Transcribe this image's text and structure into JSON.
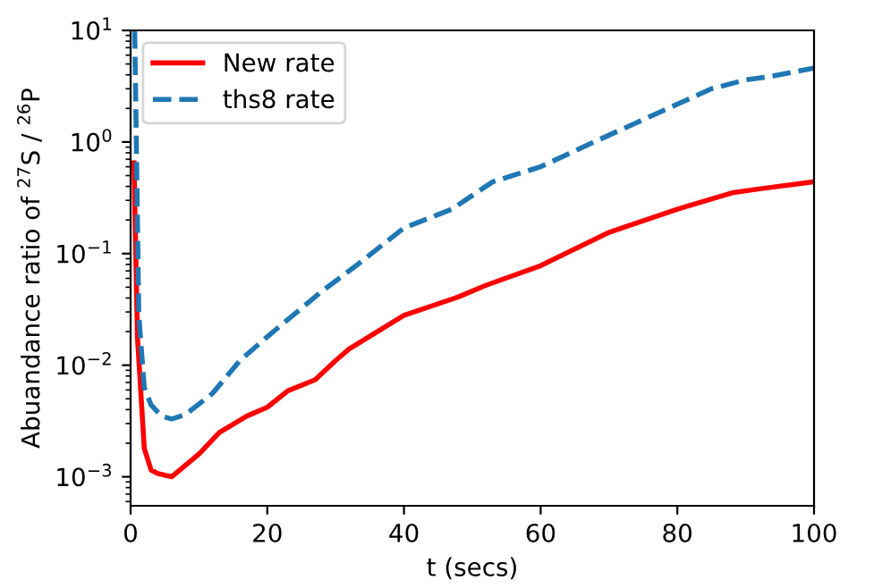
{
  "chart_data": {
    "type": "line",
    "xlabel": "t (secs)",
    "ylabel": "Abuandance ratio of $^{27}$S / $^{26}$P",
    "log": "y",
    "xlim": [
      0,
      100
    ],
    "xticks": [
      0,
      20,
      40,
      60,
      80,
      100
    ],
    "ylim": [
      0.00055,
      10
    ],
    "yticks": [
      {
        "value": 0.001,
        "label": "10$^{−3}$"
      },
      {
        "value": 0.01,
        "label": "10$^{−2}$"
      },
      {
        "value": 0.1,
        "label": "10$^{−1}$"
      },
      {
        "value": 1,
        "label": "10$^{0}$"
      },
      {
        "value": 10,
        "label": "10$^{1}$"
      }
    ],
    "legend": "top left",
    "grid": false,
    "series": [
      {
        "name": "New rate",
        "color": "#ff0000",
        "line_style": "solid",
        "x": [
          0.5,
          1,
          2,
          3,
          4,
          6,
          10,
          13,
          17,
          20,
          23,
          27,
          30,
          32,
          40,
          48,
          52,
          60,
          70,
          80,
          88,
          92,
          100
        ],
        "values": [
          0.65,
          0.018,
          0.0018,
          0.00115,
          0.00107,
          0.001,
          0.0016,
          0.0025,
          0.0035,
          0.0042,
          0.0059,
          0.0074,
          0.011,
          0.014,
          0.028,
          0.041,
          0.052,
          0.078,
          0.155,
          0.25,
          0.35,
          0.38,
          0.44
        ]
      },
      {
        "name": "ths8 rate",
        "color": "#1f77b4",
        "line_style": "dashed",
        "x": [
          0.6,
          1.2,
          2,
          3,
          4.5,
          6,
          8,
          12,
          16,
          20,
          28,
          33,
          40,
          47,
          53,
          60,
          67,
          77,
          85,
          90,
          94,
          100
        ],
        "values": [
          10,
          0.028,
          0.0063,
          0.0044,
          0.0035,
          0.0033,
          0.0036,
          0.0056,
          0.011,
          0.018,
          0.046,
          0.078,
          0.17,
          0.25,
          0.44,
          0.6,
          0.95,
          1.8,
          3.0,
          3.6,
          3.9,
          4.6
        ]
      }
    ]
  }
}
